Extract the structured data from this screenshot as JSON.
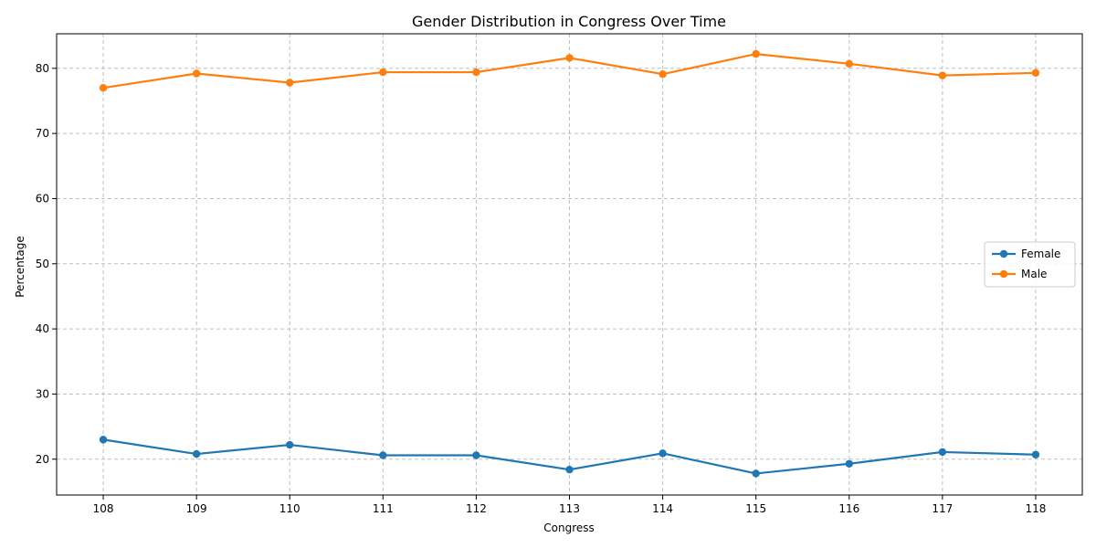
{
  "chart_data": {
    "type": "line",
    "title": "Gender Distribution in Congress Over Time",
    "xlabel": "Congress",
    "ylabel": "Percentage",
    "x": [
      108,
      109,
      110,
      111,
      112,
      113,
      114,
      115,
      116,
      117,
      118
    ],
    "xticks": [
      "108",
      "109",
      "110",
      "111",
      "112",
      "113",
      "114",
      "115",
      "116",
      "117",
      "118"
    ],
    "yticks": [
      20,
      30,
      40,
      50,
      60,
      70,
      80
    ],
    "ylim": [
      14.5,
      85.3
    ],
    "xlim": [
      107.5,
      118.5
    ],
    "grid": true,
    "legend_position": "center-right",
    "series": [
      {
        "name": "Female",
        "color": "#1f77b4",
        "values": [
          23.0,
          20.8,
          22.2,
          20.6,
          20.6,
          18.4,
          20.9,
          17.8,
          19.3,
          21.1,
          20.7
        ]
      },
      {
        "name": "Male",
        "color": "#ff7f0e",
        "values": [
          77.0,
          79.2,
          77.8,
          79.4,
          79.4,
          81.6,
          79.1,
          82.2,
          80.7,
          78.9,
          79.3
        ]
      }
    ]
  }
}
